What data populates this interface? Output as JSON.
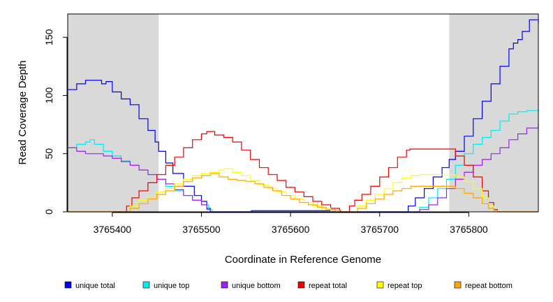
{
  "chart_data": {
    "type": "line",
    "title": "",
    "xlabel": "Coordinate in Reference Genome",
    "ylabel": "Read Coverage Depth",
    "xlim": [
      3765350,
      3765878
    ],
    "ylim": [
      0,
      170
    ],
    "x_ticks": [
      3765400,
      3765500,
      3765600,
      3765700,
      3765800
    ],
    "x_tick_labels": [
      "3765400",
      "3765500",
      "3765600",
      "3765700",
      "3765800"
    ],
    "y_ticks": [
      0,
      50,
      100,
      150
    ],
    "y_tick_labels": [
      "0",
      "50",
      "100",
      "150"
    ],
    "shaded_regions": [
      {
        "from": 3765350,
        "to": 3765452,
        "color": "#d9d9d9"
      },
      {
        "from": 3765778,
        "to": 3765878,
        "color": "#d9d9d9"
      }
    ],
    "grid": false,
    "legend_position": "bottom",
    "series": [
      {
        "name": "unique total",
        "color": "#0000ee",
        "points": [
          [
            3765350,
            105
          ],
          [
            3765360,
            110
          ],
          [
            3765370,
            113
          ],
          [
            3765380,
            113
          ],
          [
            3765388,
            110
          ],
          [
            3765393,
            112
          ],
          [
            3765400,
            103
          ],
          [
            3765410,
            97
          ],
          [
            3765420,
            92
          ],
          [
            3765430,
            80
          ],
          [
            3765440,
            70
          ],
          [
            3765448,
            60
          ],
          [
            3765452,
            52
          ],
          [
            3765460,
            42
          ],
          [
            3765468,
            33
          ],
          [
            3765480,
            22
          ],
          [
            3765492,
            14
          ],
          [
            3765500,
            9
          ],
          [
            3765506,
            3
          ],
          [
            3765510,
            0
          ],
          [
            3765555,
            0
          ],
          [
            3765556,
            1
          ],
          [
            3765600,
            1
          ],
          [
            3765640,
            1
          ],
          [
            3765656,
            0
          ],
          [
            3765728,
            0
          ],
          [
            3765732,
            5
          ],
          [
            3765740,
            12
          ],
          [
            3765750,
            20
          ],
          [
            3765760,
            30
          ],
          [
            3765770,
            38
          ],
          [
            3765778,
            45
          ],
          [
            3765785,
            52
          ],
          [
            3765795,
            65
          ],
          [
            3765805,
            80
          ],
          [
            3765815,
            95
          ],
          [
            3765825,
            110
          ],
          [
            3765835,
            125
          ],
          [
            3765845,
            140
          ],
          [
            3765850,
            145
          ],
          [
            3765855,
            148
          ],
          [
            3765860,
            155
          ],
          [
            3765868,
            165
          ],
          [
            3765878,
            162
          ]
        ]
      },
      {
        "name": "unique top",
        "color": "#00eeee",
        "points": [
          [
            3765350,
            55
          ],
          [
            3765360,
            58
          ],
          [
            3765370,
            60
          ],
          [
            3765375,
            62
          ],
          [
            3765380,
            58
          ],
          [
            3765390,
            52
          ],
          [
            3765400,
            48
          ],
          [
            3765410,
            44
          ],
          [
            3765420,
            40
          ],
          [
            3765430,
            36
          ],
          [
            3765440,
            32
          ],
          [
            3765450,
            28
          ],
          [
            3765460,
            22
          ],
          [
            3765470,
            18
          ],
          [
            3765480,
            14
          ],
          [
            3765490,
            10
          ],
          [
            3765500,
            6
          ],
          [
            3765508,
            2
          ],
          [
            3765512,
            0
          ],
          [
            3765740,
            0
          ],
          [
            3765745,
            4
          ],
          [
            3765755,
            12
          ],
          [
            3765765,
            20
          ],
          [
            3765775,
            28
          ],
          [
            3765785,
            40
          ],
          [
            3765795,
            50
          ],
          [
            3765805,
            58
          ],
          [
            3765815,
            64
          ],
          [
            3765825,
            70
          ],
          [
            3765835,
            78
          ],
          [
            3765845,
            84
          ],
          [
            3765855,
            86
          ],
          [
            3765865,
            87
          ],
          [
            3765878,
            88
          ]
        ]
      },
      {
        "name": "unique bottom",
        "color": "#a020f0",
        "points": [
          [
            3765350,
            55
          ],
          [
            3765360,
            52
          ],
          [
            3765370,
            50
          ],
          [
            3765380,
            50
          ],
          [
            3765390,
            48
          ],
          [
            3765400,
            46
          ],
          [
            3765410,
            43
          ],
          [
            3765420,
            40
          ],
          [
            3765430,
            36
          ],
          [
            3765440,
            32
          ],
          [
            3765450,
            28
          ],
          [
            3765460,
            24
          ],
          [
            3765470,
            19
          ],
          [
            3765480,
            14
          ],
          [
            3765490,
            10
          ],
          [
            3765500,
            6
          ],
          [
            3765506,
            2
          ],
          [
            3765510,
            0
          ],
          [
            3765740,
            0
          ],
          [
            3765745,
            2
          ],
          [
            3765755,
            6
          ],
          [
            3765765,
            12
          ],
          [
            3765775,
            20
          ],
          [
            3765785,
            28
          ],
          [
            3765795,
            34
          ],
          [
            3765805,
            40
          ],
          [
            3765815,
            45
          ],
          [
            3765825,
            50
          ],
          [
            3765835,
            55
          ],
          [
            3765845,
            62
          ],
          [
            3765855,
            67
          ],
          [
            3765865,
            72
          ],
          [
            3765878,
            76
          ]
        ]
      },
      {
        "name": "repeat total",
        "color": "#ee0000",
        "points": [
          [
            3765350,
            0
          ],
          [
            3765412,
            0
          ],
          [
            3765416,
            5
          ],
          [
            3765422,
            12
          ],
          [
            3765430,
            18
          ],
          [
            3765440,
            25
          ],
          [
            3765450,
            32
          ],
          [
            3765460,
            40
          ],
          [
            3765470,
            47
          ],
          [
            3765480,
            55
          ],
          [
            3765490,
            62
          ],
          [
            3765500,
            67
          ],
          [
            3765506,
            69
          ],
          [
            3765515,
            66
          ],
          [
            3765525,
            64
          ],
          [
            3765535,
            60
          ],
          [
            3765545,
            53
          ],
          [
            3765555,
            45
          ],
          [
            3765565,
            38
          ],
          [
            3765575,
            32
          ],
          [
            3765585,
            27
          ],
          [
            3765595,
            21
          ],
          [
            3765605,
            17
          ],
          [
            3765615,
            13
          ],
          [
            3765625,
            9
          ],
          [
            3765635,
            6
          ],
          [
            3765645,
            3
          ],
          [
            3765655,
            0
          ],
          [
            3765662,
            0
          ],
          [
            3765666,
            5
          ],
          [
            3765672,
            10
          ],
          [
            3765680,
            15
          ],
          [
            3765690,
            22
          ],
          [
            3765700,
            30
          ],
          [
            3765710,
            38
          ],
          [
            3765720,
            47
          ],
          [
            3765730,
            53
          ],
          [
            3765734,
            54
          ],
          [
            3765778,
            54
          ],
          [
            3765785,
            48
          ],
          [
            3765795,
            40
          ],
          [
            3765805,
            30
          ],
          [
            3765815,
            18
          ],
          [
            3765822,
            8
          ],
          [
            3765828,
            2
          ],
          [
            3765832,
            0
          ],
          [
            3765878,
            0
          ]
        ]
      },
      {
        "name": "repeat top",
        "color": "#ffff00",
        "points": [
          [
            3765350,
            0
          ],
          [
            3765412,
            0
          ],
          [
            3765420,
            5
          ],
          [
            3765430,
            10
          ],
          [
            3765440,
            14
          ],
          [
            3765450,
            17
          ],
          [
            3765460,
            20
          ],
          [
            3765470,
            24
          ],
          [
            3765480,
            28
          ],
          [
            3765490,
            31
          ],
          [
            3765500,
            33
          ],
          [
            3765510,
            34
          ],
          [
            3765520,
            36
          ],
          [
            3765526,
            37
          ],
          [
            3765535,
            34
          ],
          [
            3765545,
            31
          ],
          [
            3765555,
            27
          ],
          [
            3765565,
            23
          ],
          [
            3765575,
            20
          ],
          [
            3765585,
            17
          ],
          [
            3765595,
            14
          ],
          [
            3765605,
            11
          ],
          [
            3765615,
            8
          ],
          [
            3765625,
            5
          ],
          [
            3765635,
            3
          ],
          [
            3765645,
            1
          ],
          [
            3765655,
            0
          ],
          [
            3765668,
            0
          ],
          [
            3765675,
            5
          ],
          [
            3765685,
            10
          ],
          [
            3765695,
            15
          ],
          [
            3765705,
            20
          ],
          [
            3765715,
            25
          ],
          [
            3765725,
            29
          ],
          [
            3765735,
            31
          ],
          [
            3765745,
            32
          ],
          [
            3765778,
            32
          ],
          [
            3765785,
            30
          ],
          [
            3765795,
            26
          ],
          [
            3765805,
            20
          ],
          [
            3765815,
            12
          ],
          [
            3765822,
            5
          ],
          [
            3765828,
            1
          ],
          [
            3765832,
            0
          ],
          [
            3765878,
            0
          ]
        ]
      },
      {
        "name": "repeat bottom",
        "color": "#ffa500",
        "points": [
          [
            3765350,
            0
          ],
          [
            3765412,
            0
          ],
          [
            3765420,
            3
          ],
          [
            3765430,
            7
          ],
          [
            3765440,
            11
          ],
          [
            3765450,
            15
          ],
          [
            3765460,
            18
          ],
          [
            3765470,
            22
          ],
          [
            3765480,
            26
          ],
          [
            3765490,
            29
          ],
          [
            3765500,
            31
          ],
          [
            3765510,
            33
          ],
          [
            3765520,
            30
          ],
          [
            3765530,
            28
          ],
          [
            3765540,
            27
          ],
          [
            3765550,
            26
          ],
          [
            3765560,
            24
          ],
          [
            3765570,
            21
          ],
          [
            3765580,
            18
          ],
          [
            3765590,
            14
          ],
          [
            3765600,
            11
          ],
          [
            3765610,
            8
          ],
          [
            3765620,
            6
          ],
          [
            3765630,
            4
          ],
          [
            3765640,
            2
          ],
          [
            3765650,
            0
          ],
          [
            3765668,
            0
          ],
          [
            3765675,
            3
          ],
          [
            3765685,
            7
          ],
          [
            3765695,
            11
          ],
          [
            3765705,
            15
          ],
          [
            3765715,
            18
          ],
          [
            3765725,
            20
          ],
          [
            3765735,
            22
          ],
          [
            3765778,
            22
          ],
          [
            3765785,
            20
          ],
          [
            3765795,
            16
          ],
          [
            3765805,
            12
          ],
          [
            3765815,
            7
          ],
          [
            3765822,
            3
          ],
          [
            3765828,
            1
          ],
          [
            3765832,
            0
          ],
          [
            3765878,
            0
          ]
        ]
      }
    ]
  }
}
